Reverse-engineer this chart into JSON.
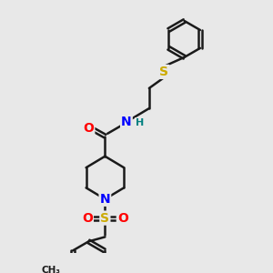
{
  "bg_color": "#e8e8e8",
  "bond_color": "#1a1a1a",
  "bond_width": 1.8,
  "atom_colors": {
    "O": "#ff0000",
    "N": "#0000ff",
    "S": "#ccaa00",
    "H": "#008080",
    "C": "#1a1a1a"
  },
  "font_size_atoms": 10,
  "font_size_H": 8
}
